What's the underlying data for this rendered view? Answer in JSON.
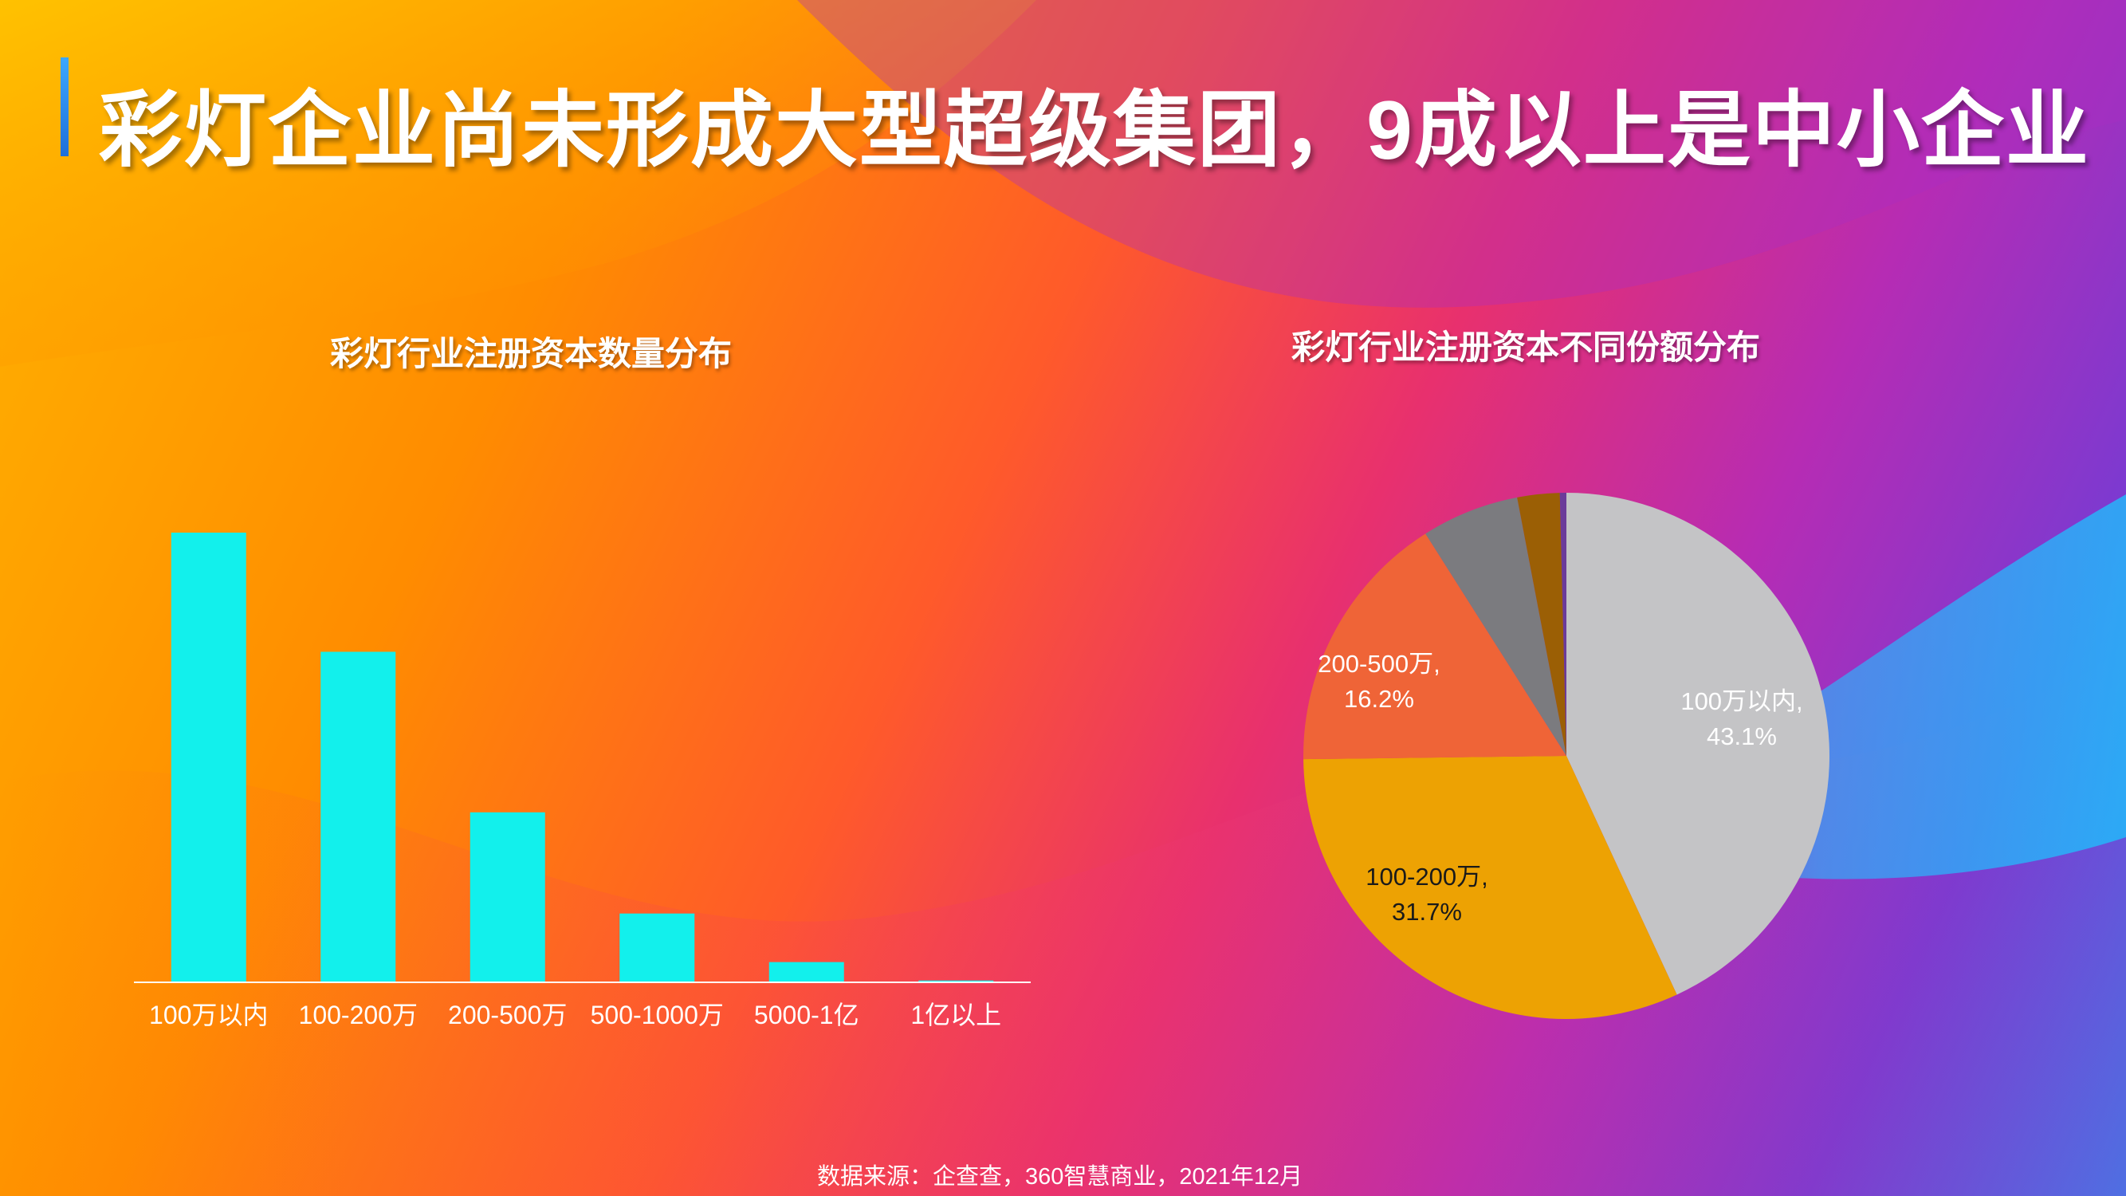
{
  "header": {
    "title": "彩灯企业尚未形成大型超级集团，9成以上是中小企业"
  },
  "colors": {
    "bar": "#12f0ec",
    "axis": "#ffffff"
  },
  "chart_data": [
    {
      "type": "bar",
      "title": "彩灯行业注册资本数量分布",
      "categories": [
        "100万以内",
        "100-200万",
        "200-500万",
        "500-1000万",
        "5000-1亿",
        "1亿以上"
      ],
      "values": [
        100,
        73.5,
        37.8,
        15.3,
        4.5,
        0.4
      ],
      "ylim": [
        0,
        100
      ],
      "xlabel": "",
      "ylabel": "",
      "grid": false,
      "legend": "none"
    },
    {
      "type": "pie",
      "title": "彩灯行业注册资本不同份额分布",
      "slices": [
        {
          "label": "100万以内",
          "value": 43.1,
          "value_label": "43.1%",
          "color": "#c4c4c6",
          "text_color": "#ffffff"
        },
        {
          "label": "100-200万",
          "value": 31.7,
          "value_label": "31.7%",
          "color": "#eda203",
          "text_color": "#1a1a1a"
        },
        {
          "label": "200-500万",
          "value": 16.2,
          "value_label": "16.2%",
          "color": "#ef6437",
          "text_color": "#ffffff"
        },
        {
          "label": "",
          "value": 6.0,
          "value_label": "",
          "color": "#7b7b7f",
          "text_color": "#ffffff"
        },
        {
          "label": "",
          "value": 2.6,
          "value_label": "",
          "color": "#9b5f05",
          "text_color": "#ffffff"
        },
        {
          "label": "",
          "value": 0.4,
          "value_label": "",
          "color": "#6b3b9a",
          "text_color": "#ffffff"
        }
      ],
      "start_angle": 0,
      "direction": "clockwise"
    }
  ],
  "footer": {
    "source": "数据来源：企查查，360智慧商业，2021年12月"
  }
}
